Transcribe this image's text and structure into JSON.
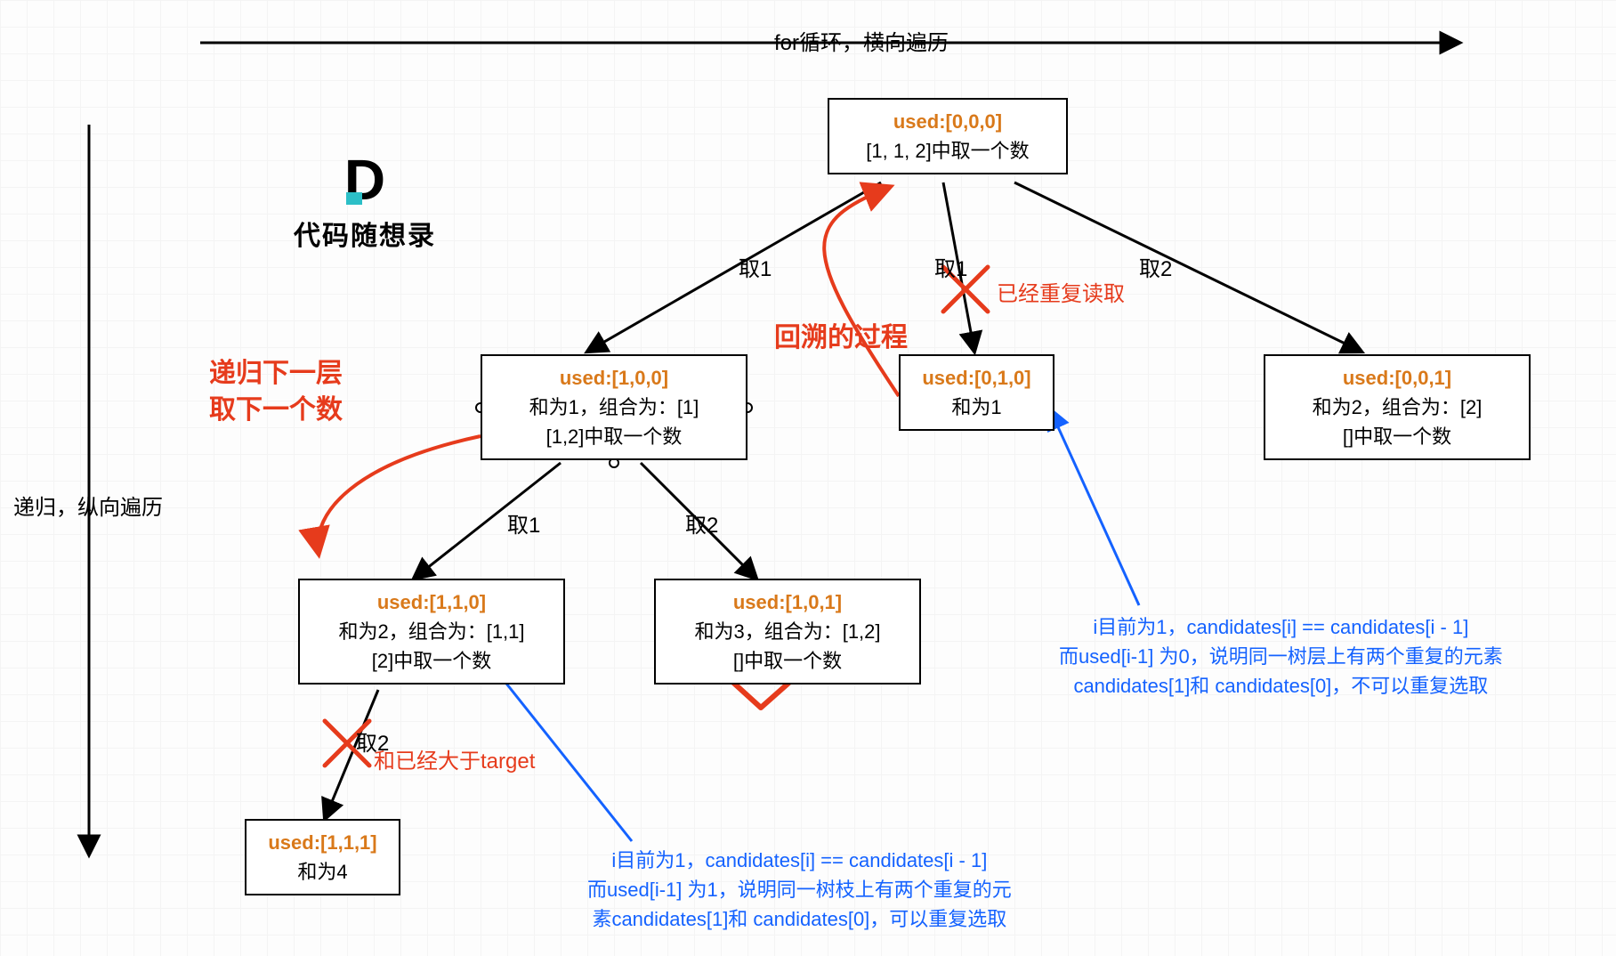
{
  "diagram": {
    "type": "tree",
    "background_color": "#fdfdfd",
    "grid_color": "#f4f4f4",
    "grid_size": 30,
    "node_border_color": "#000000",
    "node_border_width": 2.5,
    "node_bg": "#ffffff",
    "used_color": "#d9791a",
    "text_color": "#000000",
    "red_color": "#e63b1c",
    "blue_color": "#1462ff",
    "edge_color": "#000000",
    "edge_width": 3,
    "curve_red_width": 4,
    "blue_arrow_width": 3
  },
  "top_arrow_label": "for循环，横向遍历",
  "left_arrow_label": "递归，纵向遍历",
  "logo_text": "代码随想录",
  "nodes": {
    "root": {
      "used": "used:[0,0,0]",
      "lines": [
        "[1, 1, 2]中取一个数"
      ]
    },
    "n100": {
      "used": "used:[1,0,0]",
      "lines": [
        "和为1，组合为：[1]",
        "[1,2]中取一个数"
      ]
    },
    "n010": {
      "used": "used:[0,1,0]",
      "lines": [
        "和为1"
      ]
    },
    "n001": {
      "used": "used:[0,0,1]",
      "lines": [
        "和为2，组合为：[2]",
        "[]中取一个数"
      ]
    },
    "n110": {
      "used": "used:[1,1,0]",
      "lines": [
        "和为2，组合为：[1,1]",
        "[2]中取一个数"
      ]
    },
    "n101": {
      "used": "used:[1,0,1]",
      "lines": [
        "和为3，组合为：[1,2]",
        "[]中取一个数"
      ]
    },
    "n111": {
      "used": "used:[1,1,1]",
      "lines": [
        "和为4"
      ]
    }
  },
  "edge_labels": {
    "root_l": "取1",
    "root_m": "取1",
    "root_r": "取2",
    "l_l": "取1",
    "l_r": "取2",
    "ll_d": "取2"
  },
  "red_texts": {
    "recursion": "递归下一层\n取下一个数",
    "backtrack": "回溯的过程",
    "duplicate": "已经重复读取",
    "gt_target": "和已经大于target"
  },
  "blue_notes": {
    "right": "i目前为1，candidates[i] == candidates[i - 1]\n而used[i-1] 为0，说明同一树层上有两个重复的元素\ncandidates[1]和 candidates[0]，不可以重复选取",
    "bottom": "i目前为1，candidates[i] == candidates[i - 1]\n而used[i-1] 为1，说明同一树枝上有两个重复的元\n素candidates[1]和 candidates[0]，可以重复选取"
  }
}
